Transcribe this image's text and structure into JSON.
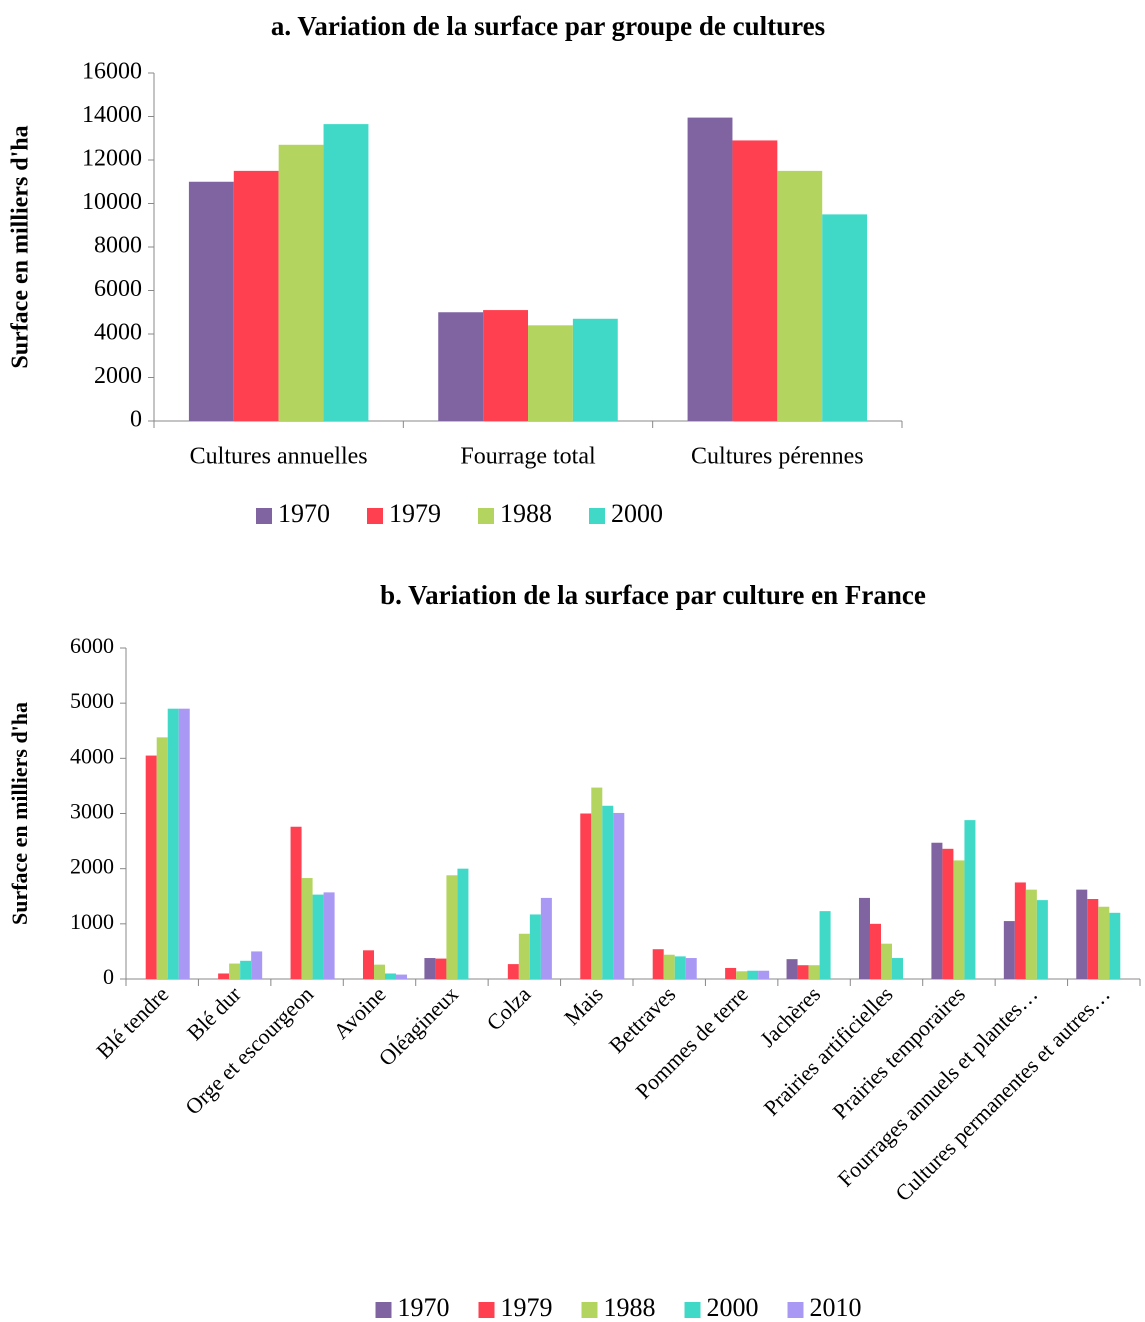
{
  "chart_data": [
    {
      "type": "bar",
      "title": "a. Variation de la surface par groupe de cultures",
      "y_label": "Surface en milliers d'ha",
      "categories": [
        "Cultures annuelles",
        "Fourrage total",
        "Cultures pérennes"
      ],
      "series": [
        {
          "name": "1970",
          "color": "#8064a2",
          "values": [
            11000,
            5000,
            13950
          ]
        },
        {
          "name": "1979",
          "color": "#ff4050",
          "values": [
            11500,
            5100,
            12900
          ]
        },
        {
          "name": "1988",
          "color": "#b3d55f",
          "values": [
            12700,
            4400,
            11500
          ]
        },
        {
          "name": "2000",
          "color": "#40d9c8",
          "values": [
            13650,
            4700,
            9500
          ]
        }
      ],
      "ylim": [
        0,
        16000
      ],
      "yticks": [
        0,
        2000,
        4000,
        6000,
        8000,
        10000,
        12000,
        14000,
        16000
      ],
      "legend": "bottom",
      "grid": false
    },
    {
      "type": "bar",
      "title": "b. Variation de la surface par culture en France",
      "y_label": "Surface en milliers d'ha",
      "categories": [
        "Blé tendre",
        "Blé dur",
        "Orge et escourgeon",
        "Avoine",
        "Oléagineux",
        "Colza",
        "Mais",
        "Bettraves",
        "Pommes de terre",
        "Jachères",
        "Prairies artificielles",
        "Prairies temporaires",
        "Fourrages annuels et plantes…",
        "Cultures permanentes et autres…"
      ],
      "series": [
        {
          "name": "1970",
          "color": "#8064a2",
          "values": [
            null,
            null,
            null,
            null,
            380,
            null,
            null,
            null,
            null,
            360,
            1470,
            2470,
            1050,
            1620
          ]
        },
        {
          "name": "1979",
          "color": "#ff4050",
          "values": [
            4050,
            100,
            2760,
            520,
            370,
            270,
            3000,
            540,
            200,
            250,
            1000,
            2360,
            1750,
            1450
          ]
        },
        {
          "name": "1988",
          "color": "#b3d55f",
          "values": [
            4380,
            280,
            1830,
            260,
            1880,
            820,
            3470,
            440,
            140,
            250,
            640,
            2150,
            1620,
            1310
          ]
        },
        {
          "name": "2000",
          "color": "#40d9c8",
          "values": [
            4900,
            330,
            1530,
            100,
            2000,
            1170,
            3140,
            410,
            150,
            1230,
            380,
            2880,
            1430,
            1200
          ]
        },
        {
          "name": "2010",
          "color": "#a999f5",
          "values": [
            4900,
            500,
            1570,
            80,
            null,
            1470,
            3010,
            380,
            150,
            null,
            null,
            null,
            null,
            null
          ]
        }
      ],
      "ylim": [
        0,
        6000
      ],
      "yticks": [
        0,
        1000,
        2000,
        3000,
        4000,
        5000,
        6000
      ],
      "legend": "bottom",
      "grid": false
    }
  ]
}
